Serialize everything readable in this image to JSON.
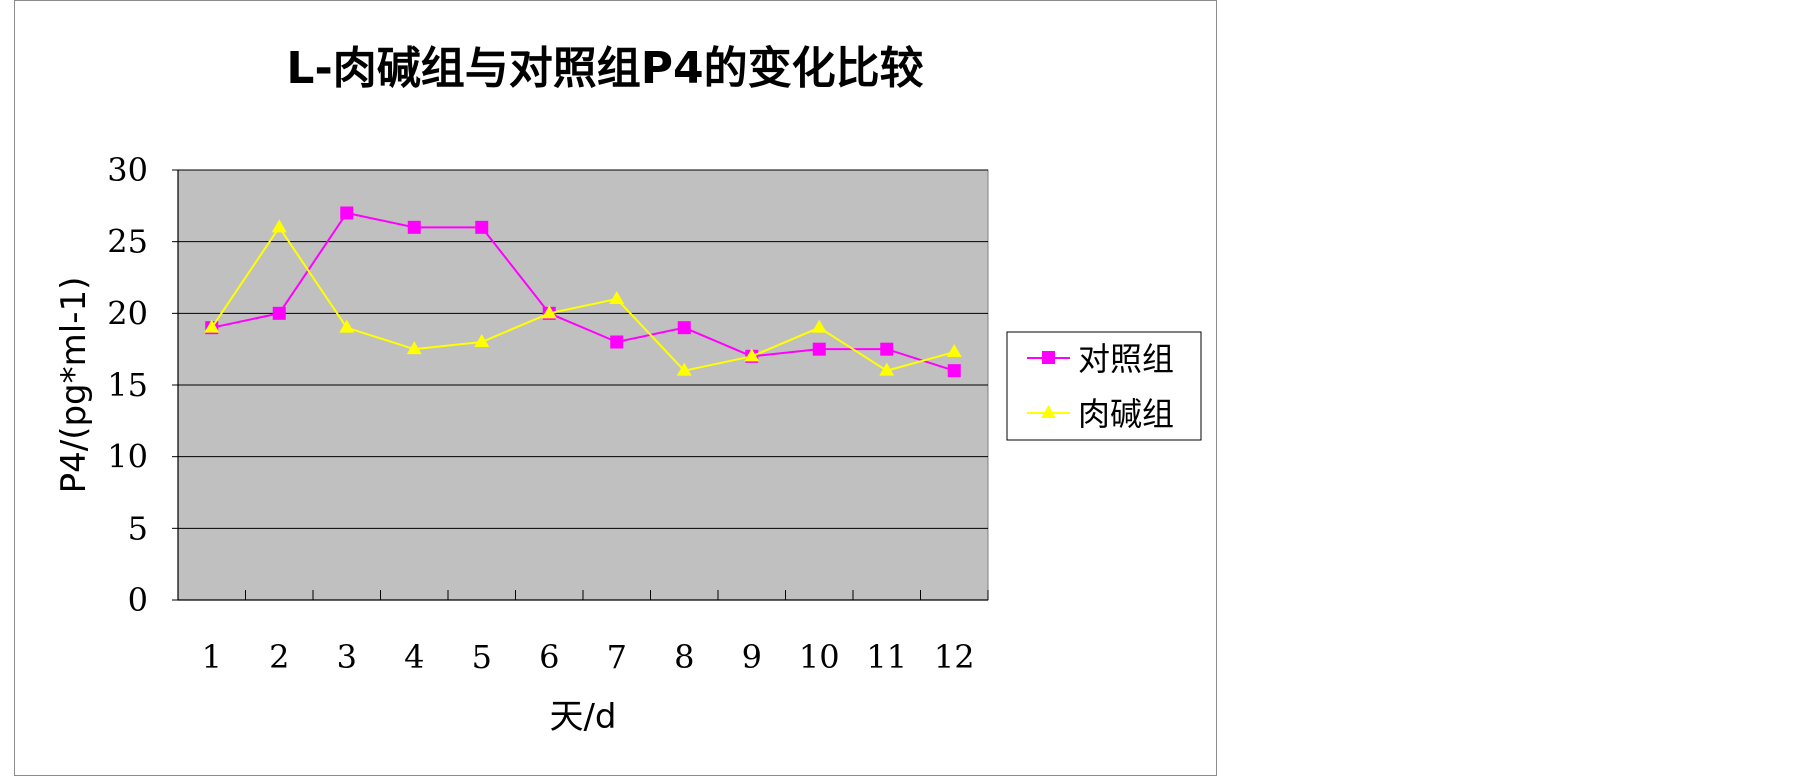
{
  "chart_data": {
    "type": "line",
    "title": "L-肉碱组与对照组P4的变化比较",
    "xlabel": "天/d",
    "ylabel": "P4/(pg*ml-1)",
    "categories": [
      "1",
      "2",
      "3",
      "4",
      "5",
      "6",
      "7",
      "8",
      "9",
      "10",
      "11",
      "12"
    ],
    "ylim": [
      0,
      30
    ],
    "yticks": [
      "0",
      "5",
      "10",
      "15",
      "20",
      "25",
      "30"
    ],
    "grid": true,
    "legend_position": "right",
    "plot_background": "#c0c0c0",
    "series": [
      {
        "name": "对照组",
        "color": "#ff00ff",
        "marker": "square",
        "values": [
          19,
          20,
          27,
          26,
          26,
          20,
          18,
          19,
          17,
          17.5,
          17.5,
          16
        ]
      },
      {
        "name": "肉碱组",
        "color": "#ffff00",
        "marker": "triangle",
        "values": [
          19,
          26,
          19,
          17.5,
          18,
          20,
          21,
          16,
          17,
          19,
          16,
          17.3
        ]
      }
    ]
  }
}
